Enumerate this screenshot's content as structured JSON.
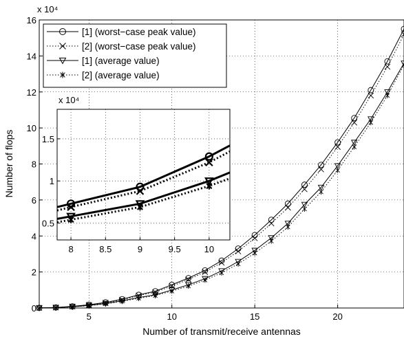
{
  "chart_data": [
    {
      "type": "line",
      "exponent_label": "x 10⁴",
      "xlabel": "Number of transmit/receive antennas",
      "ylabel": "Number of  flops",
      "xlim": [
        2,
        24
      ],
      "ylim": [
        0,
        16
      ],
      "y_units_multiplier": 10000,
      "xticks": [
        5,
        10,
        15,
        20
      ],
      "yticks": [
        0,
        2,
        4,
        6,
        8,
        10,
        12,
        14,
        16
      ],
      "grid": true,
      "legend_position": "top-left",
      "x": [
        2,
        3,
        4,
        5,
        6,
        7,
        8,
        9,
        10,
        11,
        12,
        13,
        14,
        15,
        16,
        17,
        18,
        19,
        20,
        21,
        22,
        23,
        24
      ],
      "series": [
        {
          "name": "[1] (worst−case peak value)",
          "marker": "circle",
          "dash": "solid",
          "width": 1,
          "values": [
            0.006,
            0.03,
            0.09,
            0.18,
            0.31,
            0.49,
            0.73,
            0.93,
            1.29,
            1.66,
            2.09,
            2.63,
            3.3,
            4.05,
            4.9,
            5.8,
            6.85,
            7.95,
            9.2,
            10.55,
            12.1,
            13.7,
            15.5
          ]
        },
        {
          "name": "[2] (worst−case peak value)",
          "marker": "x",
          "dash": "dotted",
          "width": 1,
          "values": [
            0.005,
            0.028,
            0.085,
            0.17,
            0.29,
            0.46,
            0.69,
            0.88,
            1.22,
            1.58,
            2.0,
            2.52,
            3.15,
            3.88,
            4.7,
            5.58,
            6.6,
            7.7,
            8.95,
            10.3,
            11.8,
            13.4,
            15.2
          ]
        },
        {
          "name": "[1] (average value)",
          "marker": "triangle-down",
          "dash": "solid",
          "width": 1,
          "values": [
            0.004,
            0.022,
            0.07,
            0.14,
            0.25,
            0.4,
            0.58,
            0.73,
            1.0,
            1.29,
            1.63,
            2.06,
            2.58,
            3.2,
            3.9,
            4.7,
            5.75,
            6.7,
            7.9,
            9.2,
            10.5,
            12.0,
            13.6
          ]
        },
        {
          "name": "[2] (average value)",
          "marker": "asterisk",
          "dash": "dotted",
          "width": 1,
          "values": [
            0.003,
            0.02,
            0.065,
            0.13,
            0.23,
            0.37,
            0.54,
            0.69,
            0.94,
            1.22,
            1.55,
            1.95,
            2.45,
            3.05,
            3.72,
            4.5,
            5.5,
            6.45,
            7.65,
            8.95,
            10.3,
            11.8,
            13.5
          ]
        }
      ]
    },
    {
      "type": "line",
      "role": "inset",
      "exponent_label": "x 10⁴",
      "xlim": [
        7.8,
        10.3
      ],
      "ylim": [
        0.3,
        1.85
      ],
      "y_units_multiplier": 10000,
      "xticks": [
        8,
        8.5,
        9,
        9.5,
        10
      ],
      "xtick_labels": [
        "8",
        "8.5",
        "9",
        "9.5",
        "10"
      ],
      "yticks": [
        0.5,
        1,
        1.5
      ],
      "ytick_labels": [
        "0.5",
        "1",
        "1.5"
      ],
      "grid": true,
      "x": [
        7.8,
        8,
        9,
        10,
        10.3
      ],
      "series": [
        {
          "name": "[1] (worst−case peak value)",
          "marker": "circle",
          "dash": "solid",
          "width": 3,
          "values": [
            0.69,
            0.73,
            0.93,
            1.29,
            1.42
          ]
        },
        {
          "name": "[2] (worst−case peak value)",
          "marker": "x",
          "dash": "dotted",
          "width": 3,
          "values": [
            0.65,
            0.69,
            0.88,
            1.22,
            1.35
          ]
        },
        {
          "name": "[1] (average value)",
          "marker": "triangle-down",
          "dash": "solid",
          "width": 3,
          "values": [
            0.55,
            0.58,
            0.73,
            1.0,
            1.1
          ]
        },
        {
          "name": "[2] (average value)",
          "marker": "asterisk",
          "dash": "dotted",
          "width": 3,
          "values": [
            0.51,
            0.54,
            0.69,
            0.94,
            1.03
          ]
        }
      ]
    }
  ]
}
